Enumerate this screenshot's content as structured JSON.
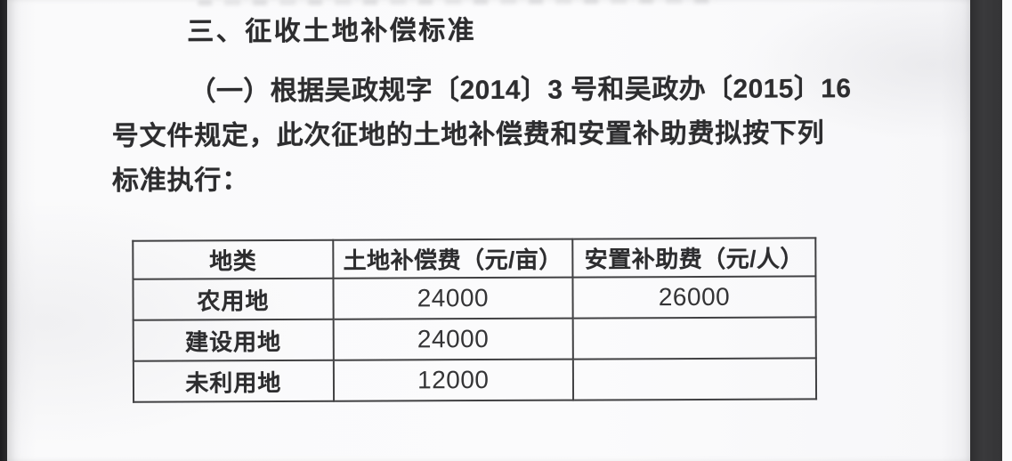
{
  "document": {
    "heading": "三、征收土地补偿标准",
    "paragraph": {
      "line1": "（一）根据吴政规字〔2014〕3 号和吴政办〔2015〕16",
      "line2": "号文件规定，此次征地的土地补偿费和安置补助费拟按下列",
      "line3": "标准执行："
    },
    "table": {
      "headers": [
        "地类",
        "土地补偿费（元/亩）",
        "安置补助费（元/人）"
      ],
      "rows": [
        {
          "land_type": "农用地",
          "land_compensation": "24000",
          "resettlement_subsidy": "26000"
        },
        {
          "land_type": "建设用地",
          "land_compensation": "24000",
          "resettlement_subsidy": ""
        },
        {
          "land_type": "未利用地",
          "land_compensation": "12000",
          "resettlement_subsidy": ""
        }
      ]
    },
    "colors": {
      "text": "#2d2d2f",
      "page_background": "#fafafb",
      "viewer_edge_left": "#242426",
      "viewer_edge_right": "#38383a",
      "table_border": "#414143"
    }
  }
}
